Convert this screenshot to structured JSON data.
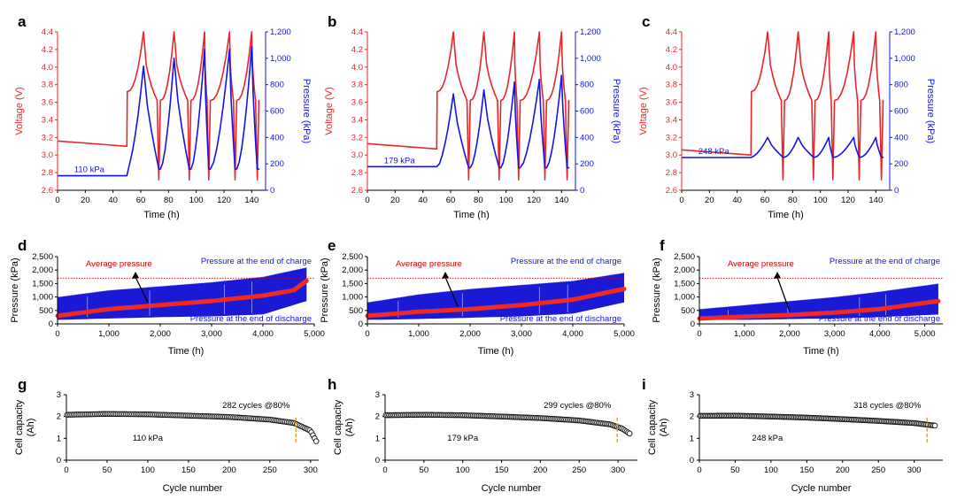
{
  "colors": {
    "voltage": "#e8262a",
    "pressure": "#1414e6",
    "band": "#1a1ad6",
    "avg": "#ee2a24",
    "dash": "#d80000",
    "capacity": "#111111",
    "marker": "#f2a51c"
  },
  "chart_data": [
    {
      "panel": "a",
      "type": "line",
      "xlabel": "Time (h)",
      "ylabel": "Voltage (V)",
      "y2label": "Pressure (kPa)",
      "xlim": [
        0,
        150
      ],
      "xticks": [
        "0",
        "20",
        "40",
        "60",
        "80",
        "100",
        "120",
        "140"
      ],
      "ylim": [
        2.6,
        4.4
      ],
      "yticks": [
        "2.6",
        "2.8",
        "3.0",
        "3.2",
        "3.4",
        "3.6",
        "3.8",
        "4.0",
        "4.2",
        "4.4"
      ],
      "y2lim": [
        0,
        1200
      ],
      "y2ticks": [
        "0",
        "200",
        "400",
        "600",
        "800",
        "1,000",
        "1,200"
      ],
      "rest_voltage": [
        3.16,
        3.1
      ],
      "peak_times": [
        62,
        84,
        106,
        124,
        140
      ],
      "trough_times": [
        73,
        95,
        109,
        128,
        144
      ],
      "charge_start": 50,
      "end_time": 145,
      "base_pressure": 110,
      "peak_pressures": [
        940,
        1000,
        1070,
        1070,
        1090
      ],
      "end_pressure": 160,
      "annotation": "110 kPa"
    },
    {
      "panel": "b",
      "type": "line",
      "xlabel": "Time (h)",
      "ylabel": "Voltage (V)",
      "y2label": "Pressure (kPa)",
      "xlim": [
        0,
        150
      ],
      "xticks": [
        "0",
        "20",
        "40",
        "60",
        "80",
        "100",
        "120",
        "140"
      ],
      "ylim": [
        2.6,
        4.4
      ],
      "yticks": [
        "2.6",
        "2.8",
        "3.0",
        "3.2",
        "3.4",
        "3.6",
        "3.8",
        "4.0",
        "4.2",
        "4.4"
      ],
      "y2lim": [
        0,
        1200
      ],
      "y2ticks": [
        "0",
        "200",
        "400",
        "600",
        "800",
        "1,000",
        "1,200"
      ],
      "rest_voltage": [
        3.13,
        3.07
      ],
      "peak_times": [
        62,
        84,
        106,
        124,
        140
      ],
      "trough_times": [
        73,
        95,
        109,
        128,
        144
      ],
      "charge_start": 50,
      "end_time": 145,
      "base_pressure": 179,
      "peak_pressures": [
        730,
        760,
        820,
        840,
        870
      ],
      "end_pressure": 170,
      "annotation": "179 kPa"
    },
    {
      "panel": "c",
      "type": "line",
      "xlabel": "Time (h)",
      "ylabel": "Voltage (V)",
      "y2label": "Pressure (kPa)",
      "xlim": [
        0,
        150
      ],
      "xticks": [
        "0",
        "20",
        "40",
        "60",
        "80",
        "100",
        "120",
        "140"
      ],
      "ylim": [
        2.6,
        4.4
      ],
      "yticks": [
        "2.6",
        "2.8",
        "3.0",
        "3.2",
        "3.4",
        "3.6",
        "3.8",
        "4.0",
        "4.2",
        "4.4"
      ],
      "y2lim": [
        0,
        1200
      ],
      "y2ticks": [
        "0",
        "200",
        "400",
        "600",
        "800",
        "1,000",
        "1,200"
      ],
      "rest_voltage": [
        3.06,
        3.0
      ],
      "peak_times": [
        62,
        84,
        106,
        124,
        140
      ],
      "trough_times": [
        73,
        95,
        109,
        128,
        144
      ],
      "charge_start": 50,
      "end_time": 145,
      "base_pressure": 248,
      "peak_pressures": [
        400,
        400,
        400,
        400,
        400
      ],
      "end_pressure": 250,
      "annotation": "248 kPa"
    },
    {
      "panel": "d",
      "type": "area",
      "xlabel": "Time (h)",
      "ylabel": "Pressure (kPa)",
      "xlim": [
        0,
        5000
      ],
      "xticks": [
        "0",
        "1,000",
        "2,000",
        "3,000",
        "4,000",
        "5,000"
      ],
      "xtick_values": [
        0,
        1000,
        2000,
        3000,
        4000,
        5000
      ],
      "ylim": [
        0,
        2500
      ],
      "yticks": [
        "0",
        "500",
        "1,000",
        "1,500",
        "2,000",
        "2,500"
      ],
      "end_time": 4850,
      "charge_end_pressure": [
        [
          0,
          1000
        ],
        [
          1000,
          1250
        ],
        [
          2000,
          1400
        ],
        [
          3000,
          1550
        ],
        [
          4000,
          1750
        ],
        [
          4850,
          2100
        ]
      ],
      "discharge_end_pressure": [
        [
          0,
          150
        ],
        [
          1000,
          200
        ],
        [
          2000,
          250
        ],
        [
          3000,
          280
        ],
        [
          4000,
          350
        ],
        [
          4850,
          850
        ]
      ],
      "average_pressure": [
        [
          0,
          300
        ],
        [
          1000,
          550
        ],
        [
          2000,
          700
        ],
        [
          3000,
          850
        ],
        [
          4000,
          1050
        ],
        [
          4600,
          1250
        ],
        [
          4850,
          1600
        ]
      ],
      "reference_line": 1700,
      "labels": {
        "avg": "Average pressure",
        "charge": "Pressure at the end of charge",
        "discharge": "Pressure at the end of discharge"
      }
    },
    {
      "panel": "e",
      "type": "area",
      "xlabel": "Time (h)",
      "ylabel": "Pressure (kPa)",
      "xlim": [
        0,
        5000
      ],
      "xticks": [
        "0",
        "1,000",
        "2,000",
        "3,000",
        "4,000",
        "5,000"
      ],
      "xtick_values": [
        0,
        1000,
        2000,
        3000,
        4000,
        5000
      ],
      "ylim": [
        0,
        2500
      ],
      "yticks": [
        "0",
        "500",
        "1,000",
        "1,500",
        "2,000",
        "2,500"
      ],
      "end_time": 5000,
      "charge_end_pressure": [
        [
          0,
          800
        ],
        [
          1000,
          1100
        ],
        [
          2000,
          1300
        ],
        [
          3000,
          1450
        ],
        [
          4000,
          1600
        ],
        [
          5000,
          1900
        ]
      ],
      "discharge_end_pressure": [
        [
          0,
          150
        ],
        [
          1000,
          180
        ],
        [
          2000,
          230
        ],
        [
          3000,
          280
        ],
        [
          4000,
          380
        ],
        [
          5000,
          800
        ]
      ],
      "average_pressure": [
        [
          0,
          300
        ],
        [
          1000,
          450
        ],
        [
          2000,
          550
        ],
        [
          3000,
          700
        ],
        [
          4000,
          900
        ],
        [
          5000,
          1300
        ]
      ],
      "reference_line": 1700,
      "labels": {
        "avg": "Average pressure",
        "charge": "Pressure at the end of charge",
        "discharge": "Pressure at the end of discharge"
      }
    },
    {
      "panel": "f",
      "type": "area",
      "xlabel": "Time (h)",
      "ylabel": "Pressure (kPa)",
      "xlim": [
        0,
        5400
      ],
      "xticks": [
        "0",
        "1,000",
        "2,000",
        "3,000",
        "4,000",
        "5,000"
      ],
      "xtick_values": [
        0,
        1000,
        2000,
        3000,
        4000,
        5000
      ],
      "ylim": [
        0,
        2500
      ],
      "yticks": [
        "0",
        "500",
        "1,000",
        "1,500",
        "2,000",
        "2,500"
      ],
      "end_time": 5300,
      "charge_end_pressure": [
        [
          0,
          550
        ],
        [
          1000,
          700
        ],
        [
          2000,
          850
        ],
        [
          3000,
          1000
        ],
        [
          4000,
          1200
        ],
        [
          5300,
          1500
        ]
      ],
      "discharge_end_pressure": [
        [
          0,
          150
        ],
        [
          1000,
          150
        ],
        [
          2000,
          180
        ],
        [
          3000,
          200
        ],
        [
          4000,
          250
        ],
        [
          5300,
          350
        ]
      ],
      "average_pressure": [
        [
          0,
          200
        ],
        [
          1000,
          270
        ],
        [
          2000,
          330
        ],
        [
          3000,
          420
        ],
        [
          4000,
          550
        ],
        [
          5300,
          850
        ]
      ],
      "reference_line": 1700,
      "labels": {
        "avg": "Average pressure",
        "charge": "Pressure at the end of charge",
        "discharge": "Pressure at the end of discharge"
      }
    },
    {
      "panel": "g",
      "type": "scatter",
      "xlabel": "Cycle number",
      "ylabel": "Cell capacity (Ah)",
      "xlim": [
        0,
        310
      ],
      "xticks": [
        "0",
        "50",
        "100",
        "150",
        "200",
        "250",
        "300"
      ],
      "ylim": [
        0,
        3
      ],
      "yticks": [
        "0",
        "1",
        "2",
        "3"
      ],
      "capacity_curve": [
        [
          0,
          2.08
        ],
        [
          50,
          2.12
        ],
        [
          100,
          2.1
        ],
        [
          150,
          2.04
        ],
        [
          200,
          1.98
        ],
        [
          250,
          1.86
        ],
        [
          280,
          1.7
        ],
        [
          300,
          1.35
        ],
        [
          307,
          0.87
        ]
      ],
      "cycles_at_80": 282,
      "annotation": "282 cycles @80%",
      "pressure_label": "110 kPa"
    },
    {
      "panel": "h",
      "type": "scatter",
      "xlabel": "Cycle number",
      "ylabel": "Cell capacity (Ah)",
      "xlim": [
        0,
        325
      ],
      "xticks": [
        "0",
        "50",
        "100",
        "150",
        "200",
        "250",
        "300"
      ],
      "ylim": [
        0,
        3
      ],
      "yticks": [
        "0",
        "1",
        "2",
        "3"
      ],
      "capacity_curve": [
        [
          0,
          2.06
        ],
        [
          50,
          2.08
        ],
        [
          100,
          2.06
        ],
        [
          150,
          2.0
        ],
        [
          200,
          1.93
        ],
        [
          250,
          1.82
        ],
        [
          290,
          1.64
        ],
        [
          305,
          1.45
        ],
        [
          315,
          1.22
        ]
      ],
      "cycles_at_80": 299,
      "annotation": "299 cycles @80%",
      "pressure_label": "179 kPa"
    },
    {
      "panel": "i",
      "type": "scatter",
      "xlabel": "Cycle number",
      "ylabel": "Cell capacity (Ah)",
      "xlim": [
        0,
        340
      ],
      "xticks": [
        "0",
        "50",
        "100",
        "150",
        "200",
        "250",
        "300"
      ],
      "ylim": [
        0,
        3
      ],
      "yticks": [
        "0",
        "1",
        "2",
        "3"
      ],
      "capacity_curve": [
        [
          0,
          2.03
        ],
        [
          50,
          2.04
        ],
        [
          100,
          2.0
        ],
        [
          150,
          1.95
        ],
        [
          200,
          1.88
        ],
        [
          250,
          1.8
        ],
        [
          300,
          1.7
        ],
        [
          330,
          1.58
        ]
      ],
      "cycles_at_80": 318,
      "annotation": "318 cycles @80%",
      "pressure_label": "248 kPa"
    }
  ]
}
